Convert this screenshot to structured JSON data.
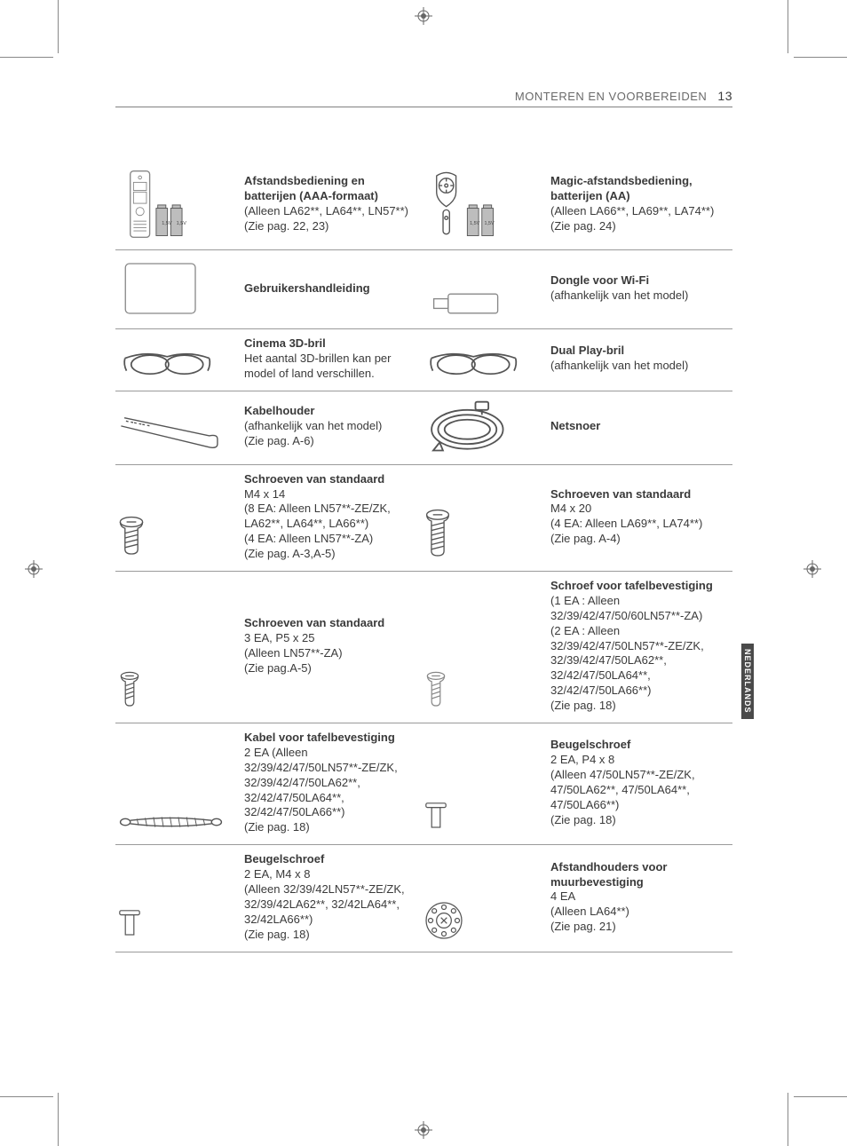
{
  "header": {
    "section": "MONTEREN EN VOORBEREIDEN",
    "page_num": "13"
  },
  "side_tab": "NEDERLANDS",
  "rows": [
    {
      "left": {
        "icon": "remote-aaa",
        "title": "Afstandsbediening en batterijen (AAA-formaat)",
        "desc": "(Alleen LA62**, LA64**, LN57**)\n(Zie pag. 22, 23)"
      },
      "right": {
        "icon": "magic-remote",
        "title": "Magic-afstandsbediening, batterijen (AA)",
        "desc": "(Alleen LA66**, LA69**, LA74**)\n(Zie pag. 24)"
      }
    },
    {
      "left": {
        "icon": "manual",
        "title": "Gebruikershandleiding",
        "desc": ""
      },
      "right": {
        "icon": "dongle",
        "title": "Dongle voor Wi-Fi",
        "desc": "(afhankelijk van het model)"
      }
    },
    {
      "left": {
        "icon": "glasses-3d",
        "title": "Cinema 3D-bril",
        "desc": "Het aantal 3D-brillen kan per model of land verschillen."
      },
      "right": {
        "icon": "glasses-dual",
        "title": "Dual Play-bril",
        "desc": "(afhankelijk van het model)"
      }
    },
    {
      "left": {
        "icon": "cable-holder",
        "title": "Kabelhouder",
        "desc": "(afhankelijk van het model)\n(Zie pag. A-6)"
      },
      "right": {
        "icon": "power-cord",
        "title": "Netsnoer",
        "desc": ""
      }
    },
    {
      "left": {
        "icon": "screw-m4x14",
        "title": "Schroeven van standaard",
        "desc": "M4 x 14\n(8 EA: Alleen LN57**-ZE/ZK, LA62**, LA64**, LA66**)\n(4 EA: Alleen LN57**-ZA)\n(Zie pag. A-3,A-5)"
      },
      "right": {
        "icon": "screw-m4x20",
        "title": "Schroeven van standaard",
        "desc": "M4 x 20\n(4 EA: Alleen LA69**, LA74**)\n(Zie pag. A-4)"
      }
    },
    {
      "left": {
        "icon": "screw-p5x25",
        "title": "Schroeven van standaard",
        "desc": "3 EA, P5 x 25\n(Alleen LN57**-ZA)\n(Zie pag.A-5)"
      },
      "right": {
        "icon": "screw-desk",
        "title": "Schroef voor tafelbevestiging",
        "desc": "(1 EA : Alleen 32/39/42/47/50/60LN57**-ZA)\n(2 EA : Alleen 32/39/42/47/50LN57**-ZE/ZK, 32/39/42/47/50LA62**, 32/42/47/50LA64**, 32/42/47/50LA66**)\n(Zie pag. 18)"
      }
    },
    {
      "left": {
        "icon": "desk-cable",
        "title": "Kabel voor tafelbevestiging",
        "desc": "2 EA (Alleen 32/39/42/47/50LN57**-ZE/ZK, 32/39/42/47/50LA62**, 32/42/47/50LA64**, 32/42/47/50LA66**)\n(Zie pag. 18)"
      },
      "right": {
        "icon": "bracket-p4x8",
        "title": "Beugelschroef",
        "desc": "2 EA, P4 x 8\n(Alleen 47/50LN57**-ZE/ZK, 47/50LA62**, 47/50LA64**, 47/50LA66**)\n(Zie pag. 18)"
      }
    },
    {
      "left": {
        "icon": "bracket-m4x8",
        "title": "Beugelschroef",
        "desc": "2 EA, M4 x 8\n(Alleen 32/39/42LN57**-ZE/ZK, 32/39/42LA62**, 32/42LA64**, 32/42LA66**)\n(Zie pag. 18)"
      },
      "right": {
        "icon": "wall-spacer",
        "title": "Afstandhouders voor muurbevestiging",
        "desc": "4 EA\n(Alleen LA64**)\n(Zie pag. 21)"
      }
    }
  ]
}
